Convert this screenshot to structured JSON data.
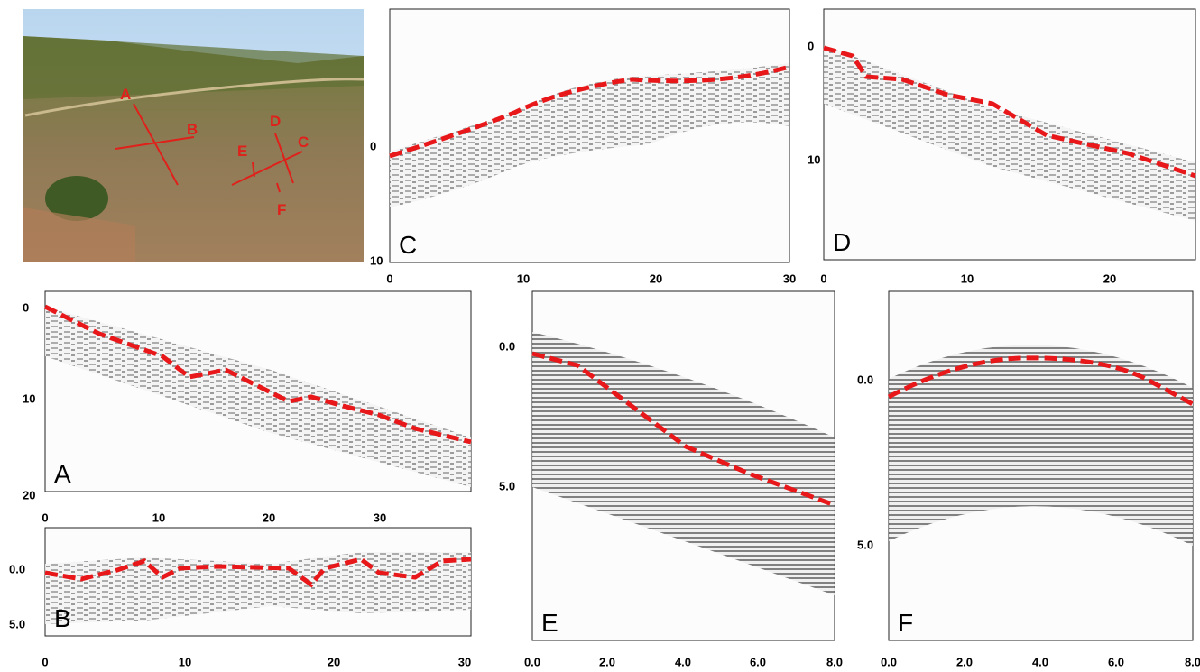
{
  "photo": {
    "labels": [
      "A",
      "B",
      "C",
      "D",
      "E",
      "F"
    ]
  },
  "panels": [
    {
      "label": "C",
      "xticks": [
        "0",
        "10",
        "20",
        "30"
      ],
      "yticks": [
        "0",
        "10"
      ]
    },
    {
      "label": "D",
      "xticks": [
        "0",
        "10",
        "20"
      ],
      "yticks": [
        "0",
        "10"
      ]
    },
    {
      "label": "A",
      "xticks": [
        "0",
        "10",
        "20",
        "30"
      ],
      "yticks": [
        "0",
        "10",
        "20"
      ]
    },
    {
      "label": "B",
      "xticks": [
        "0",
        "10",
        "20",
        "30"
      ],
      "yticks": [
        "0.0",
        "5.0"
      ]
    },
    {
      "label": "E",
      "xticks": [
        "0.0",
        "2.0",
        "4.0",
        "6.0",
        "8.0"
      ],
      "yticks": [
        "0.0",
        "5.0"
      ]
    },
    {
      "label": "F",
      "xticks": [
        "0.0",
        "2.0",
        "4.0",
        "6.0",
        "8.0"
      ],
      "yticks": [
        "0.0",
        "5.0"
      ]
    }
  ]
}
